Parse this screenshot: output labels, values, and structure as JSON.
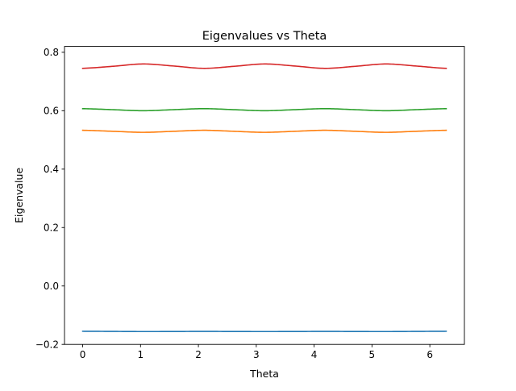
{
  "chart_data": {
    "type": "line",
    "title": "Eigenvalues vs Theta",
    "xlabel": "Theta",
    "ylabel": "Eigenvalue",
    "xlim": [
      -0.3142,
      6.5973
    ],
    "ylim": [
      -0.2,
      0.82
    ],
    "xticks": [
      0,
      1,
      2,
      3,
      4,
      5,
      6
    ],
    "yticks": [
      -0.2,
      0.0,
      0.2,
      0.4,
      0.6,
      0.8
    ],
    "xtick_labels": [
      "0",
      "1",
      "2",
      "3",
      "4",
      "5",
      "6"
    ],
    "ytick_labels": [
      "−0.2",
      "0.0",
      "0.2",
      "0.4",
      "0.6",
      "0.8"
    ],
    "grid": false,
    "legend": "none",
    "series": [
      {
        "color": "#1f77b4",
        "x": [
          0,
          0.5236,
          1.0472,
          1.5708,
          2.0944,
          2.618,
          3.1416,
          3.6652,
          4.1888,
          4.7124,
          5.236,
          5.7596,
          6.2832
        ],
        "values": [
          -0.155,
          -0.1555,
          -0.156,
          -0.1558,
          -0.1555,
          -0.1558,
          -0.156,
          -0.1558,
          -0.1555,
          -0.1558,
          -0.156,
          -0.1555,
          -0.155
        ]
      },
      {
        "color": "#ff7f0e",
        "x": [
          0,
          0.5236,
          1.0472,
          1.5708,
          2.0944,
          2.618,
          3.1416,
          3.6652,
          4.1888,
          4.7124,
          5.236,
          5.7596,
          6.2832
        ],
        "values": [
          0.533,
          0.5295,
          0.526,
          0.5295,
          0.533,
          0.5295,
          0.526,
          0.5295,
          0.533,
          0.5295,
          0.526,
          0.5295,
          0.533
        ]
      },
      {
        "color": "#2ca02c",
        "x": [
          0,
          0.5236,
          1.0472,
          1.5708,
          2.0944,
          2.618,
          3.1416,
          3.6652,
          4.1888,
          4.7124,
          5.236,
          5.7596,
          6.2832
        ],
        "values": [
          0.607,
          0.6035,
          0.6,
          0.6035,
          0.607,
          0.6035,
          0.6,
          0.6035,
          0.607,
          0.6035,
          0.6,
          0.6035,
          0.607
        ]
      },
      {
        "color": "#d62728",
        "x": [
          0,
          0.5236,
          1.0472,
          1.5708,
          2.0944,
          2.618,
          3.1416,
          3.6652,
          4.1888,
          4.7124,
          5.236,
          5.7596,
          6.2832
        ],
        "values": [
          0.745,
          0.752,
          0.76,
          0.753,
          0.745,
          0.752,
          0.76,
          0.753,
          0.745,
          0.752,
          0.76,
          0.753,
          0.745
        ]
      }
    ]
  }
}
